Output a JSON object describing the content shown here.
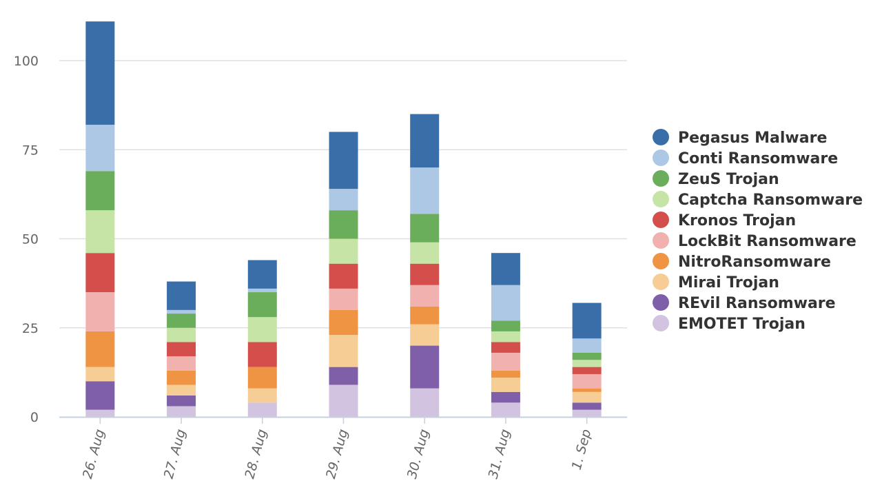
{
  "chart_data": {
    "type": "bar",
    "stacked": true,
    "categories": [
      "26. Aug",
      "27. Aug",
      "28. Aug",
      "29. Aug",
      "30. Aug",
      "31. Aug",
      "1. Sep"
    ],
    "ylim": [
      0,
      110
    ],
    "yticks": [
      0,
      25,
      50,
      75,
      100
    ],
    "grid": true,
    "legend_position": "right",
    "series": [
      {
        "name": "EMOTET Trojan",
        "color": "#d2c3e0",
        "values": [
          2,
          3,
          4,
          9,
          8,
          4,
          2
        ]
      },
      {
        "name": "REvil Ransomware",
        "color": "#7e5fa8",
        "values": [
          8,
          3,
          0,
          5,
          12,
          3,
          2
        ]
      },
      {
        "name": "Mirai Trojan",
        "color": "#f6cd94",
        "values": [
          4,
          3,
          4,
          9,
          6,
          4,
          3
        ]
      },
      {
        "name": "NitroRansomware",
        "color": "#ee9443",
        "values": [
          10,
          4,
          6,
          7,
          5,
          2,
          1
        ]
      },
      {
        "name": "LockBit Ransomware",
        "color": "#f1b1ae",
        "values": [
          11,
          4,
          0,
          6,
          6,
          5,
          4
        ]
      },
      {
        "name": "Kronos Trojan",
        "color": "#d44f4b",
        "values": [
          11,
          4,
          7,
          7,
          6,
          3,
          2
        ]
      },
      {
        "name": "Captcha Ransomware",
        "color": "#c6e4a6",
        "values": [
          12,
          4,
          7,
          7,
          6,
          3,
          2
        ]
      },
      {
        "name": "ZeuS Trojan",
        "color": "#6aad5a",
        "values": [
          11,
          4,
          7,
          8,
          8,
          3,
          2
        ]
      },
      {
        "name": "Conti Ransomware",
        "color": "#adc8e4",
        "values": [
          13,
          1,
          1,
          6,
          13,
          10,
          4
        ]
      },
      {
        "name": "Pegasus Malware",
        "color": "#3a6ea8",
        "values": [
          29,
          8,
          8,
          16,
          15,
          9,
          10
        ]
      }
    ],
    "legend_order": [
      "Pegasus Malware",
      "Conti Ransomware",
      "ZeuS Trojan",
      "Captcha Ransomware",
      "Kronos Trojan",
      "LockBit Ransomware",
      "NitroRansomware",
      "Mirai Trojan",
      "REvil Ransomware",
      "EMOTET Trojan"
    ]
  }
}
